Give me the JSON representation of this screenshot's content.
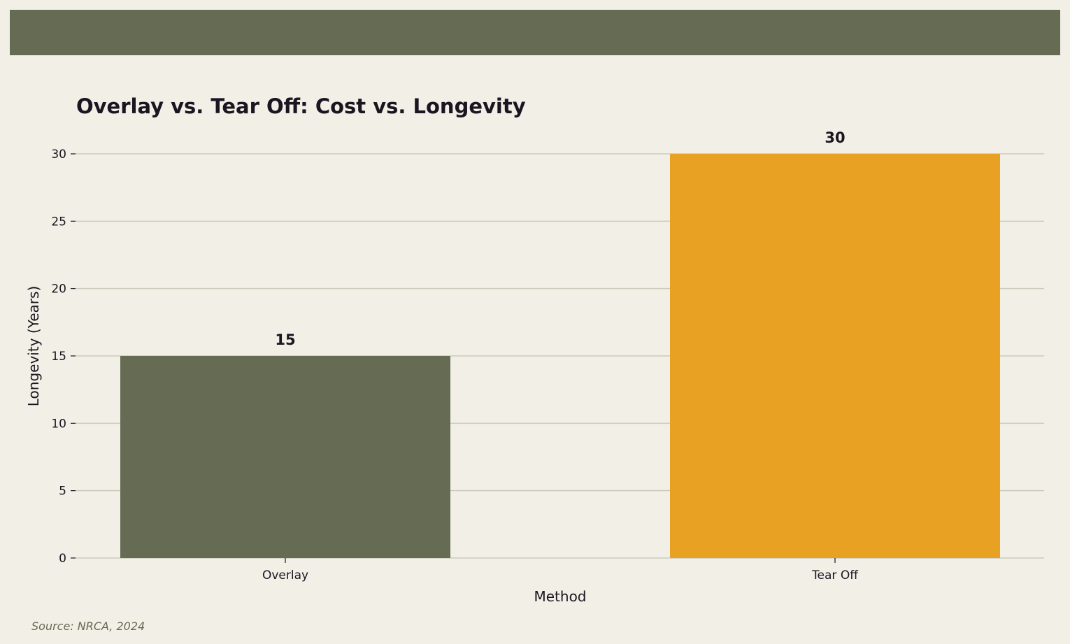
{
  "chart_data": {
    "type": "bar",
    "title": "Overlay vs. Tear Off: Cost vs. Longevity",
    "xlabel": "Method",
    "ylabel": "Longevity (Years)",
    "categories": [
      "Overlay",
      "Tear Off"
    ],
    "values": [
      15,
      30
    ],
    "data_labels": [
      "15",
      "30"
    ],
    "ylim": [
      0,
      30
    ],
    "yticks": [
      0,
      5,
      10,
      15,
      20,
      25,
      30
    ],
    "grid": true,
    "bar_colors": [
      "#666b54",
      "#e8a123"
    ]
  },
  "source": "Source: NRCA, 2024",
  "colors": {
    "background": "#f2efe6",
    "header_bar": "#666b54",
    "grid": "#cdcabb",
    "text": "#1a1520"
  }
}
